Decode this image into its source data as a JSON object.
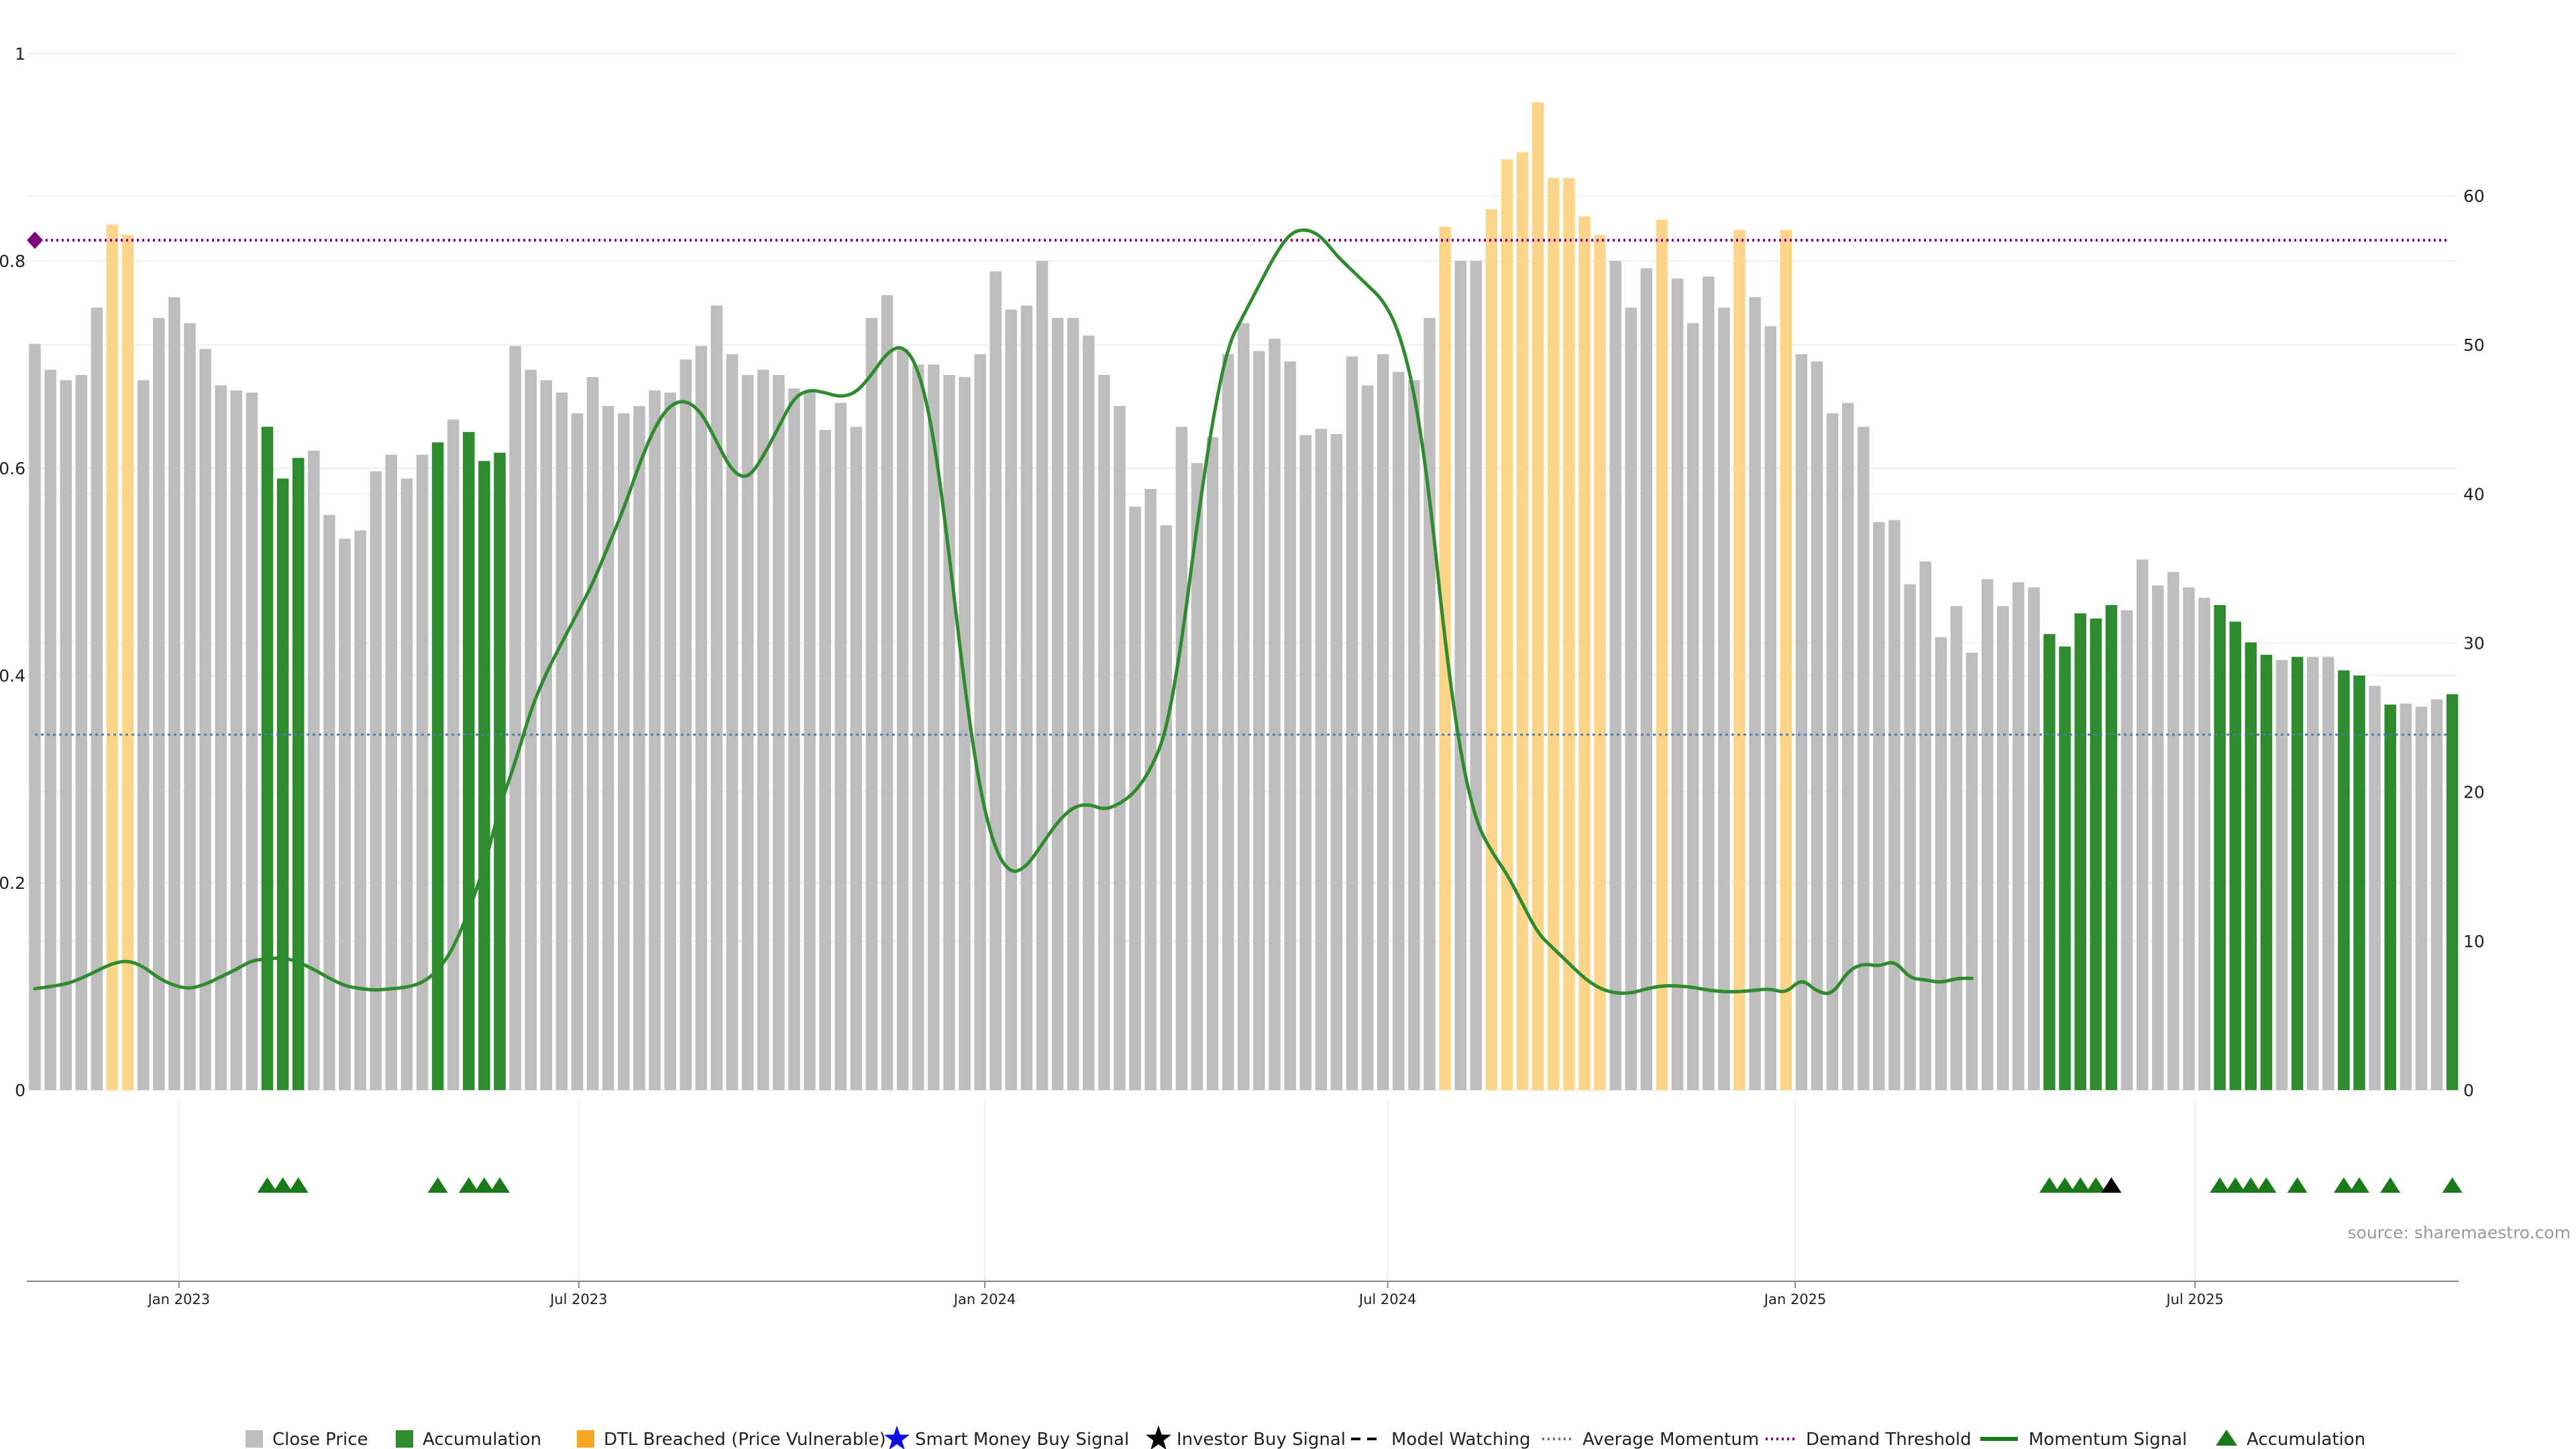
{
  "chart_data": {
    "type": "bar",
    "source": "source: sharemaestro.com",
    "left_axis": {
      "ylim": [
        0,
        1
      ],
      "ticks": [
        "0",
        "0.2",
        "0.4",
        "0.6",
        "0.8",
        "1"
      ],
      "tick_values": [
        0,
        0.2,
        0.4,
        0.6,
        0.8,
        1
      ]
    },
    "right_axis": {
      "ylim": [
        0,
        60
      ],
      "ticks": [
        "0",
        "10",
        "20",
        "30",
        "40",
        "50",
        "60"
      ],
      "tick_values": [
        0,
        10,
        20,
        30,
        40,
        50,
        60
      ]
    },
    "x_ticks": [
      {
        "label": "Jan 2023",
        "bar_index": 9.3
      },
      {
        "label": "Jul 2023",
        "bar_index": 35.1
      },
      {
        "label": "Jan 2024",
        "bar_index": 61.3
      },
      {
        "label": "Jul 2024",
        "bar_index": 87.3
      },
      {
        "label": "Jan 2025",
        "bar_index": 113.6
      },
      {
        "label": "Jul 2025",
        "bar_index": 139.4
      }
    ],
    "demand_threshold": 0.82,
    "average_momentum": 0.343,
    "bar_values": [
      0.72,
      0.695,
      0.685,
      0.69,
      0.755,
      0.835,
      0.825,
      0.685,
      0.745,
      0.765,
      0.74,
      0.715,
      0.68,
      0.675,
      0.673,
      0.64,
      0.59,
      0.61,
      0.617,
      0.555,
      0.532,
      0.54,
      0.597,
      0.613,
      0.59,
      0.613,
      0.625,
      0.647,
      0.635,
      0.607,
      0.615,
      0.718,
      0.695,
      0.685,
      0.673,
      0.653,
      0.688,
      0.66,
      0.653,
      0.66,
      0.675,
      0.673,
      0.705,
      0.718,
      0.757,
      0.71,
      0.69,
      0.695,
      0.69,
      0.677,
      0.675,
      0.637,
      0.663,
      0.64,
      0.745,
      0.767,
      0.715,
      0.7,
      0.7,
      0.69,
      0.688,
      0.71,
      0.79,
      0.753,
      0.757,
      0.8,
      0.745,
      0.745,
      0.728,
      0.69,
      0.66,
      0.563,
      0.58,
      0.545,
      0.64,
      0.605,
      0.63,
      0.71,
      0.74,
      0.713,
      0.725,
      0.703,
      0.632,
      0.638,
      0.633,
      0.708,
      0.68,
      0.71,
      0.693,
      0.685,
      0.745,
      0.833,
      0.8,
      0.8,
      0.85,
      0.898,
      0.905,
      0.953,
      0.88,
      0.88,
      0.843,
      0.825,
      0.8,
      0.755,
      0.793,
      0.84,
      0.783,
      0.74,
      0.785,
      0.755,
      0.83,
      0.765,
      0.737,
      0.83,
      0.71,
      0.703,
      0.653,
      0.663,
      0.64,
      0.548,
      0.55,
      0.488,
      0.51,
      0.437,
      0.467,
      0.422,
      0.493,
      0.467,
      0.49,
      0.485,
      0.44,
      0.428,
      0.46,
      0.455,
      0.468,
      0.463,
      0.512,
      0.487,
      0.5,
      0.485,
      0.475,
      0.468,
      0.452,
      0.432,
      0.42,
      0.415,
      0.418,
      0.418,
      0.418,
      0.405,
      0.4,
      0.39,
      0.372,
      0.373,
      0.37,
      0.377,
      0.382
    ],
    "bar_types": [
      "g",
      "g",
      "g",
      "g",
      "g",
      "o",
      "o",
      "g",
      "g",
      "g",
      "g",
      "g",
      "g",
      "g",
      "g",
      "a",
      "a",
      "a",
      "g",
      "g",
      "g",
      "g",
      "g",
      "g",
      "g",
      "g",
      "a",
      "g",
      "a",
      "a",
      "a",
      "g",
      "g",
      "g",
      "g",
      "g",
      "g",
      "g",
      "g",
      "g",
      "g",
      "g",
      "g",
      "g",
      "g",
      "g",
      "g",
      "g",
      "g",
      "g",
      "g",
      "g",
      "g",
      "g",
      "g",
      "g",
      "g",
      "g",
      "g",
      "g",
      "g",
      "g",
      "g",
      "g",
      "g",
      "g",
      "g",
      "g",
      "g",
      "g",
      "g",
      "g",
      "g",
      "g",
      "g",
      "g",
      "g",
      "g",
      "g",
      "g",
      "g",
      "g",
      "g",
      "g",
      "g",
      "g",
      "g",
      "g",
      "g",
      "g",
      "g",
      "o",
      "g",
      "g",
      "o",
      "o",
      "o",
      "o",
      "o",
      "o",
      "o",
      "o",
      "g",
      "g",
      "g",
      "o",
      "g",
      "g",
      "g",
      "g",
      "o",
      "g",
      "g",
      "o",
      "g",
      "g",
      "g",
      "g",
      "g",
      "g",
      "g",
      "g",
      "g",
      "g",
      "g",
      "g",
      "g",
      "g",
      "g",
      "g",
      "a",
      "a",
      "a",
      "a",
      "a",
      "g",
      "g",
      "g",
      "g",
      "g",
      "g",
      "a",
      "a",
      "a",
      "a",
      "g",
      "a",
      "g",
      "g",
      "a",
      "a",
      "g",
      "a",
      "g",
      "g",
      "g",
      "a"
    ],
    "momentum_curve": [
      [
        0,
        6.8
      ],
      [
        2,
        7.1
      ],
      [
        3,
        7.5
      ],
      [
        4,
        8.0
      ],
      [
        5,
        8.5
      ],
      [
        6,
        8.7
      ],
      [
        7,
        8.3
      ],
      [
        8,
        7.5
      ],
      [
        9,
        7.0
      ],
      [
        10,
        6.8
      ],
      [
        11,
        7.1
      ],
      [
        12,
        7.6
      ],
      [
        13,
        8.1
      ],
      [
        14,
        8.7
      ],
      [
        15,
        8.8
      ],
      [
        16,
        8.9
      ],
      [
        17,
        8.6
      ],
      [
        18,
        8.1
      ],
      [
        19,
        7.5
      ],
      [
        20,
        7.0
      ],
      [
        21,
        6.8
      ],
      [
        22,
        6.7
      ],
      [
        23,
        6.8
      ],
      [
        24,
        6.9
      ],
      [
        25,
        7.2
      ],
      [
        26,
        8.0
      ],
      [
        27,
        9.5
      ],
      [
        28,
        12.0
      ],
      [
        29,
        15.0
      ],
      [
        30,
        19.0
      ],
      [
        31,
        22.0
      ],
      [
        32,
        25.5
      ],
      [
        33,
        28.0
      ],
      [
        34,
        30.0
      ],
      [
        35,
        32.0
      ],
      [
        36,
        34.0
      ],
      [
        37,
        36.5
      ],
      [
        38,
        39.0
      ],
      [
        39,
        42.0
      ],
      [
        40,
        44.5
      ],
      [
        41,
        46.0
      ],
      [
        42,
        46.3
      ],
      [
        43,
        45.5
      ],
      [
        44,
        43.5
      ],
      [
        45,
        41.5
      ],
      [
        46,
        41.0
      ],
      [
        47,
        42.5
      ],
      [
        48,
        44.5
      ],
      [
        49,
        46.5
      ],
      [
        50,
        47.0
      ],
      [
        51,
        46.8
      ],
      [
        52,
        46.5
      ],
      [
        53,
        46.8
      ],
      [
        54,
        48.0
      ],
      [
        55,
        49.5
      ],
      [
        56,
        50.0
      ],
      [
        57,
        48.5
      ],
      [
        58,
        44.0
      ],
      [
        59,
        36.0
      ],
      [
        60,
        27.0
      ],
      [
        61,
        20.0
      ],
      [
        62,
        16.0
      ],
      [
        63,
        14.5
      ],
      [
        64,
        15.0
      ],
      [
        65,
        16.5
      ],
      [
        66,
        18.0
      ],
      [
        67,
        19.0
      ],
      [
        68,
        19.2
      ],
      [
        69,
        18.8
      ],
      [
        70,
        19.2
      ],
      [
        71,
        20.0
      ],
      [
        72,
        21.5
      ],
      [
        73,
        24.0
      ],
      [
        74,
        30.0
      ],
      [
        75,
        38.0
      ],
      [
        76,
        45.0
      ],
      [
        77,
        50.0
      ],
      [
        78,
        52.0
      ],
      [
        79,
        54.0
      ],
      [
        80,
        56.0
      ],
      [
        81,
        57.5
      ],
      [
        82,
        57.8
      ],
      [
        83,
        57.3
      ],
      [
        84,
        56.0
      ],
      [
        85,
        55.0
      ],
      [
        86,
        54.0
      ],
      [
        87,
        53.0
      ],
      [
        88,
        51.0
      ],
      [
        89,
        47.0
      ],
      [
        90,
        40.0
      ],
      [
        91,
        30.0
      ],
      [
        92,
        22.5
      ],
      [
        93,
        18.0
      ],
      [
        94,
        16.0
      ],
      [
        95,
        14.5
      ],
      [
        96,
        12.5
      ],
      [
        97,
        10.5
      ],
      [
        98,
        9.5
      ],
      [
        99,
        8.5
      ],
      [
        100,
        7.5
      ],
      [
        101,
        6.8
      ],
      [
        102,
        6.5
      ],
      [
        103,
        6.5
      ],
      [
        104,
        6.8
      ],
      [
        105,
        7.0
      ],
      [
        106,
        7.0
      ],
      [
        107,
        6.9
      ],
      [
        108,
        6.7
      ],
      [
        109,
        6.6
      ],
      [
        110,
        6.6
      ],
      [
        111,
        6.7
      ],
      [
        112,
        6.8
      ],
      [
        113,
        6.5
      ],
      [
        114,
        7.5
      ],
      [
        115,
        6.6
      ],
      [
        116,
        6.4
      ],
      [
        117,
        8.0
      ],
      [
        118,
        8.5
      ],
      [
        119,
        8.3
      ],
      [
        120,
        8.7
      ],
      [
        121,
        7.5
      ],
      [
        122,
        7.4
      ],
      [
        123,
        7.2
      ],
      [
        124,
        7.5
      ],
      [
        125,
        7.5
      ]
    ],
    "markers": [
      {
        "bar": 15,
        "type": "accumulation"
      },
      {
        "bar": 16,
        "type": "accumulation"
      },
      {
        "bar": 17,
        "type": "accumulation"
      },
      {
        "bar": 26,
        "type": "accumulation"
      },
      {
        "bar": 28,
        "type": "accumulation"
      },
      {
        "bar": 29,
        "type": "accumulation"
      },
      {
        "bar": 30,
        "type": "accumulation"
      },
      {
        "bar": 130,
        "type": "accumulation"
      },
      {
        "bar": 131,
        "type": "accumulation"
      },
      {
        "bar": 132,
        "type": "accumulation"
      },
      {
        "bar": 133,
        "type": "accumulation"
      },
      {
        "bar": 134,
        "type": "investor"
      },
      {
        "bar": 141,
        "type": "accumulation"
      },
      {
        "bar": 142,
        "type": "accumulation"
      },
      {
        "bar": 143,
        "type": "accumulation"
      },
      {
        "bar": 144,
        "type": "accumulation"
      },
      {
        "bar": 146,
        "type": "accumulation"
      },
      {
        "bar": 149,
        "type": "accumulation"
      },
      {
        "bar": 150,
        "type": "accumulation"
      },
      {
        "bar": 152,
        "type": "accumulation"
      },
      {
        "bar": 156,
        "type": "accumulation"
      }
    ],
    "legend": [
      {
        "label": "Close Price",
        "symbol": "square",
        "color": "#bdbdbd"
      },
      {
        "label": "Accumulation",
        "symbol": "square",
        "color": "#2e8b2e"
      },
      {
        "label": "DTL Breached (Price Vulnerable)",
        "symbol": "square",
        "color": "#f5a623"
      },
      {
        "label": "Smart Money Buy Signal",
        "symbol": "star",
        "color": "#1010e0"
      },
      {
        "label": "Investor Buy Signal",
        "symbol": "star",
        "color": "#000000"
      },
      {
        "label": "Model Watching",
        "symbol": "dash",
        "color": "#000000"
      },
      {
        "label": "Average Momentum",
        "symbol": "dots",
        "color": "#4a7fb0"
      },
      {
        "label": "Demand Threshold",
        "symbol": "dots",
        "color": "#800080"
      },
      {
        "label": "Momentum Signal",
        "symbol": "line",
        "color": "#1a7a1a"
      },
      {
        "label": "Accumulation",
        "symbol": "triangle",
        "color": "#1a7a1a"
      }
    ],
    "colors": {
      "close_price": "#bdbdbd",
      "accumulation": "#2e8b2e",
      "dtl_breached": "#fcd48a",
      "momentum": "#2e8b2e",
      "demand_threshold": "#800080",
      "average_momentum": "#4a7fb0",
      "marker": "#1a7a1a",
      "investor_marker": "#000000"
    }
  }
}
